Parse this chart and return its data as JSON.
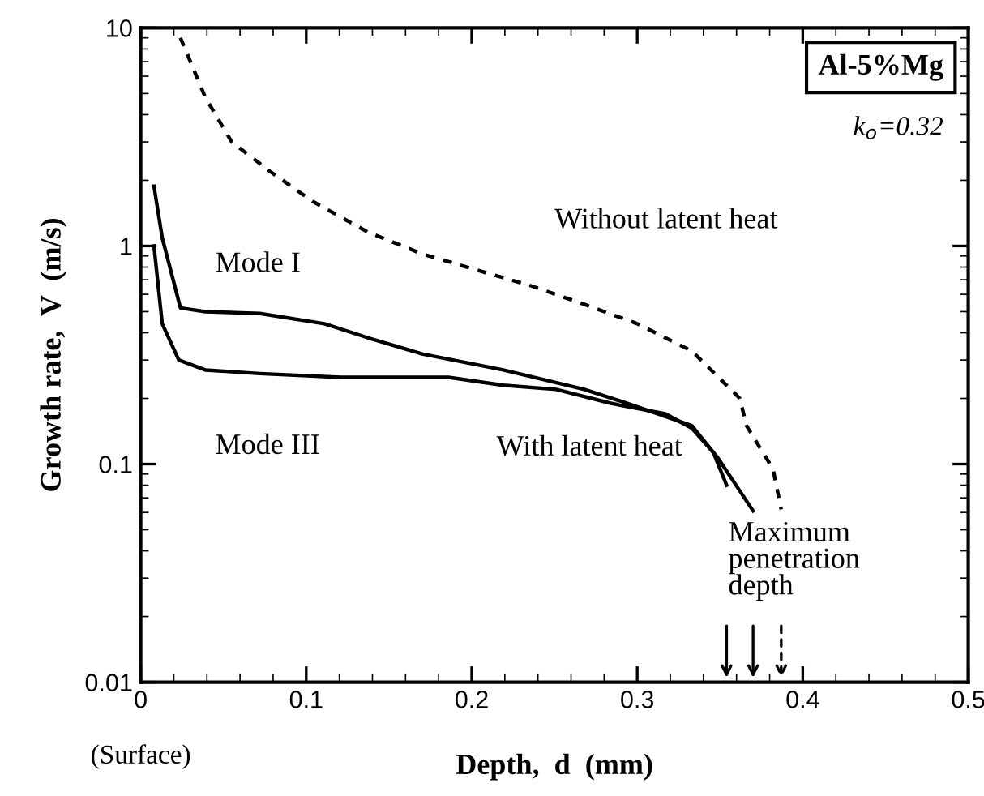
{
  "chart_data": {
    "type": "line",
    "xlabel": "Depth,  d  (mm)",
    "ylabel": "Growth rate,  V  (m/s)",
    "log": "y",
    "xlim": [
      0,
      0.5
    ],
    "ylim": [
      0.01,
      10
    ],
    "xticks": [
      0,
      0.1,
      0.2,
      0.3,
      0.4,
      0.5
    ],
    "yticks": [
      0.01,
      0.1,
      1,
      10
    ],
    "grid": false,
    "legend": false,
    "marker": "none",
    "series": [
      {
        "name": "Without latent heat",
        "color": "#000000",
        "line_style": "dotted",
        "x": [
          0.024,
          0.039,
          0.055,
          0.078,
          0.104,
          0.137,
          0.17,
          0.202,
          0.235,
          0.268,
          0.3,
          0.333,
          0.362,
          0.366,
          0.382,
          0.387
        ],
        "values": [
          9.0,
          4.8,
          3.0,
          2.2,
          1.6,
          1.16,
          0.92,
          0.78,
          0.66,
          0.54,
          0.44,
          0.33,
          0.2,
          0.15,
          0.095,
          0.062
        ]
      },
      {
        "name": "Mode I",
        "color": "#000000",
        "line_style": "solid",
        "x": [
          0.008,
          0.013,
          0.024,
          0.039,
          0.072,
          0.111,
          0.137,
          0.17,
          0.219,
          0.268,
          0.294,
          0.333,
          0.349,
          0.37
        ],
        "values": [
          1.88,
          1.09,
          0.52,
          0.5,
          0.49,
          0.44,
          0.38,
          0.32,
          0.27,
          0.22,
          0.19,
          0.15,
          0.106,
          0.061
        ]
      },
      {
        "name": "Mode III",
        "color": "#000000",
        "line_style": "solid",
        "x": [
          0.008,
          0.013,
          0.023,
          0.039,
          0.072,
          0.121,
          0.186,
          0.219,
          0.251,
          0.284,
          0.317,
          0.333,
          0.346,
          0.354
        ],
        "values": [
          1.0,
          0.44,
          0.3,
          0.27,
          0.26,
          0.25,
          0.25,
          0.23,
          0.22,
          0.19,
          0.17,
          0.146,
          0.113,
          0.08
        ]
      }
    ],
    "annotations": [
      "With latent heat",
      "Al-5%Mg",
      "k$_{o}$=0.32",
      "Maximum\npenetration\ndepth",
      "(Surface)"
    ]
  }
}
